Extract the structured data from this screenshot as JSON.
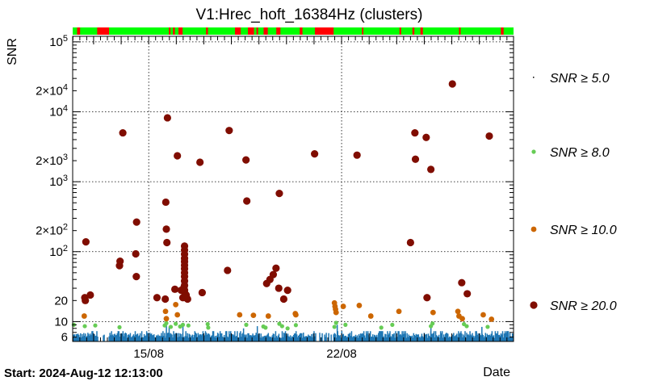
{
  "chart_data": {
    "type": "scatter",
    "title": "V1:Hrec_hoft_16384Hz (clusters)",
    "xlabel": "Date",
    "ylabel": "SNR",
    "start_label": "Start: 2024-Aug-12 12:13:00",
    "x_unit": "days",
    "xlim": [
      0,
      16.0
    ],
    "ylim": [
      5.2,
      120000
    ],
    "yscale": "log",
    "grid": true,
    "x_ticks": [
      {
        "label": "15/08",
        "x": 2.76
      },
      {
        "label": "22/08",
        "x": 9.76
      }
    ],
    "y_ticks": [
      {
        "label": "6",
        "value": 6
      },
      {
        "label": "10",
        "value": 10
      },
      {
        "label": "20",
        "value": 20
      },
      {
        "label": "10^2",
        "value": 100
      },
      {
        "label": "2×10^2",
        "value": 200
      },
      {
        "label": "10^3",
        "value": 1000
      },
      {
        "label": "2×10^3",
        "value": 2000
      },
      {
        "label": "10^4",
        "value": 10000
      },
      {
        "label": "2×10^4",
        "value": 20000
      },
      {
        "label": "10^5",
        "value": 100000
      }
    ],
    "status_bar": {
      "colors": {
        "on": "#00ff00",
        "off": "#ff0000"
      },
      "off_segments": [
        [
          0.16,
          0.27
        ],
        [
          0.89,
          1.32
        ],
        [
          3.49,
          3.55
        ],
        [
          3.64,
          3.71
        ],
        [
          3.84,
          3.99
        ],
        [
          4.84,
          4.91
        ],
        [
          5.89,
          6.1
        ],
        [
          6.36,
          6.58
        ],
        [
          6.67,
          6.73
        ],
        [
          6.93,
          7.08
        ],
        [
          7.39,
          7.54
        ],
        [
          8.24,
          8.34
        ],
        [
          8.79,
          9.47
        ],
        [
          10.5,
          10.55
        ],
        [
          11.86,
          11.92
        ],
        [
          12.33,
          12.4
        ],
        [
          12.62,
          12.71
        ],
        [
          14.02,
          14.08
        ],
        [
          15.54,
          15.64
        ]
      ]
    },
    "series": [
      {
        "name": "SNR ≥ 5.0",
        "color": "#1f77b4",
        "marker": "pixel",
        "legend_symbol": "dot",
        "y_range": [
          5.3,
          7.3
        ],
        "x_range": [
          0,
          16.0
        ],
        "density": "continuous",
        "extra_points": [
          {
            "x": 3.4,
            "y": 9.0
          },
          {
            "x": 3.5,
            "y": 8.5
          },
          {
            "x": 4.0,
            "y": 9.2
          },
          {
            "x": 6.2,
            "y": 8.0
          },
          {
            "x": 6.7,
            "y": 8.6
          },
          {
            "x": 9.6,
            "y": 9.0
          },
          {
            "x": 13.0,
            "y": 8.2
          },
          {
            "x": 14.85,
            "y": 8.4
          }
        ]
      },
      {
        "name": "SNR ≥ 8.0",
        "color": "#66cc55",
        "marker": "small",
        "points": [
          {
            "x": 0.04,
            "y": 9.0
          },
          {
            "x": 0.44,
            "y": 8.6
          },
          {
            "x": 0.82,
            "y": 8.8
          },
          {
            "x": 1.7,
            "y": 8.3
          },
          {
            "x": 3.34,
            "y": 8.8
          },
          {
            "x": 3.4,
            "y": 9.5
          },
          {
            "x": 3.56,
            "y": 8.4
          },
          {
            "x": 3.74,
            "y": 9.3
          },
          {
            "x": 3.9,
            "y": 8.5
          },
          {
            "x": 4.0,
            "y": 9.0
          },
          {
            "x": 4.2,
            "y": 8.8
          },
          {
            "x": 4.9,
            "y": 9.2
          },
          {
            "x": 4.92,
            "y": 8.2
          },
          {
            "x": 6.3,
            "y": 9.0
          },
          {
            "x": 6.92,
            "y": 8.5
          },
          {
            "x": 7.0,
            "y": 8.2
          },
          {
            "x": 7.5,
            "y": 9.3
          },
          {
            "x": 7.6,
            "y": 8.6
          },
          {
            "x": 7.8,
            "y": 8.0
          },
          {
            "x": 8.1,
            "y": 8.9
          },
          {
            "x": 9.5,
            "y": 8.4
          },
          {
            "x": 9.56,
            "y": 9.6
          },
          {
            "x": 9.9,
            "y": 9.0
          },
          {
            "x": 11.2,
            "y": 8.2
          },
          {
            "x": 11.6,
            "y": 9.0
          },
          {
            "x": 13.0,
            "y": 8.6
          },
          {
            "x": 13.06,
            "y": 9.4
          },
          {
            "x": 14.2,
            "y": 9.2
          },
          {
            "x": 14.3,
            "y": 8.6
          },
          {
            "x": 15.06,
            "y": 8.4
          }
        ]
      },
      {
        "name": "SNR ≥ 10.0",
        "color": "#cc6600",
        "marker": "medium",
        "points": [
          {
            "x": 0.42,
            "y": 12.0
          },
          {
            "x": 3.37,
            "y": 14.0
          },
          {
            "x": 3.4,
            "y": 11.0
          },
          {
            "x": 3.74,
            "y": 17.5
          },
          {
            "x": 3.8,
            "y": 12.5
          },
          {
            "x": 6.06,
            "y": 12.5
          },
          {
            "x": 6.56,
            "y": 12.3
          },
          {
            "x": 7.1,
            "y": 12.0
          },
          {
            "x": 8.08,
            "y": 13.0
          },
          {
            "x": 8.1,
            "y": 12.5
          },
          {
            "x": 9.5,
            "y": 18.5
          },
          {
            "x": 9.52,
            "y": 16.5
          },
          {
            "x": 9.54,
            "y": 15.0
          },
          {
            "x": 9.56,
            "y": 13.5
          },
          {
            "x": 9.82,
            "y": 16.5
          },
          {
            "x": 10.4,
            "y": 17.0
          },
          {
            "x": 10.82,
            "y": 12.0
          },
          {
            "x": 11.84,
            "y": 14.0
          },
          {
            "x": 13.08,
            "y": 13.5
          },
          {
            "x": 13.98,
            "y": 14.0
          },
          {
            "x": 14.02,
            "y": 12.0
          },
          {
            "x": 14.14,
            "y": 11.0
          },
          {
            "x": 14.9,
            "y": 12.5
          },
          {
            "x": 15.2,
            "y": 10.8
          }
        ]
      },
      {
        "name": "SNR ≥ 20.0",
        "color": "#800d00",
        "marker": "large",
        "points": [
          {
            "x": 0.44,
            "y": 22
          },
          {
            "x": 0.46,
            "y": 20
          },
          {
            "x": 0.48,
            "y": 138
          },
          {
            "x": 0.64,
            "y": 24
          },
          {
            "x": 1.7,
            "y": 63
          },
          {
            "x": 1.72,
            "y": 73
          },
          {
            "x": 1.82,
            "y": 5000
          },
          {
            "x": 2.29,
            "y": 93
          },
          {
            "x": 2.31,
            "y": 44
          },
          {
            "x": 2.32,
            "y": 265
          },
          {
            "x": 3.06,
            "y": 22
          },
          {
            "x": 3.36,
            "y": 21
          },
          {
            "x": 3.38,
            "y": 510
          },
          {
            "x": 3.4,
            "y": 210
          },
          {
            "x": 3.42,
            "y": 135
          },
          {
            "x": 3.44,
            "y": 8200
          },
          {
            "x": 3.71,
            "y": 29
          },
          {
            "x": 3.8,
            "y": 2350
          },
          {
            "x": 3.94,
            "y": 28
          },
          {
            "x": 4.0,
            "y": 22
          },
          {
            "x": 4.17,
            "y": 21
          },
          {
            "x": 4.06,
            "y": 120
          },
          {
            "x": 4.06,
            "y": 105
          },
          {
            "x": 4.06,
            "y": 92
          },
          {
            "x": 4.06,
            "y": 80
          },
          {
            "x": 4.06,
            "y": 72
          },
          {
            "x": 4.06,
            "y": 64
          },
          {
            "x": 4.06,
            "y": 57
          },
          {
            "x": 4.06,
            "y": 50
          },
          {
            "x": 4.06,
            "y": 44
          },
          {
            "x": 4.06,
            "y": 38
          },
          {
            "x": 4.06,
            "y": 33
          },
          {
            "x": 4.06,
            "y": 28
          },
          {
            "x": 4.08,
            "y": 25
          },
          {
            "x": 4.1,
            "y": 22
          },
          {
            "x": 4.04,
            "y": 31
          },
          {
            "x": 4.12,
            "y": 24
          },
          {
            "x": 4.62,
            "y": 1900
          },
          {
            "x": 4.7,
            "y": 26
          },
          {
            "x": 5.62,
            "y": 54
          },
          {
            "x": 5.68,
            "y": 5400
          },
          {
            "x": 6.29,
            "y": 2050
          },
          {
            "x": 6.32,
            "y": 530
          },
          {
            "x": 7.04,
            "y": 35
          },
          {
            "x": 7.16,
            "y": 40
          },
          {
            "x": 7.28,
            "y": 47
          },
          {
            "x": 7.38,
            "y": 58
          },
          {
            "x": 7.48,
            "y": 30
          },
          {
            "x": 7.5,
            "y": 680
          },
          {
            "x": 7.66,
            "y": 21
          },
          {
            "x": 7.8,
            "y": 28
          },
          {
            "x": 8.78,
            "y": 2500
          },
          {
            "x": 10.32,
            "y": 2400
          },
          {
            "x": 12.26,
            "y": 135
          },
          {
            "x": 12.42,
            "y": 5000
          },
          {
            "x": 12.44,
            "y": 2100
          },
          {
            "x": 12.83,
            "y": 4300
          },
          {
            "x": 12.86,
            "y": 22
          },
          {
            "x": 13.0,
            "y": 1500
          },
          {
            "x": 13.78,
            "y": 25000
          },
          {
            "x": 14.12,
            "y": 36
          },
          {
            "x": 14.32,
            "y": 25
          },
          {
            "x": 15.12,
            "y": 4500
          }
        ]
      }
    ],
    "legend": {
      "placement": "right",
      "entries": [
        {
          "label": "SNR ≥ 5.0"
        },
        {
          "label": "SNR ≥ 8.0"
        },
        {
          "label": "SNR ≥ 10.0"
        },
        {
          "label": "SNR ≥ 20.0"
        }
      ]
    }
  }
}
